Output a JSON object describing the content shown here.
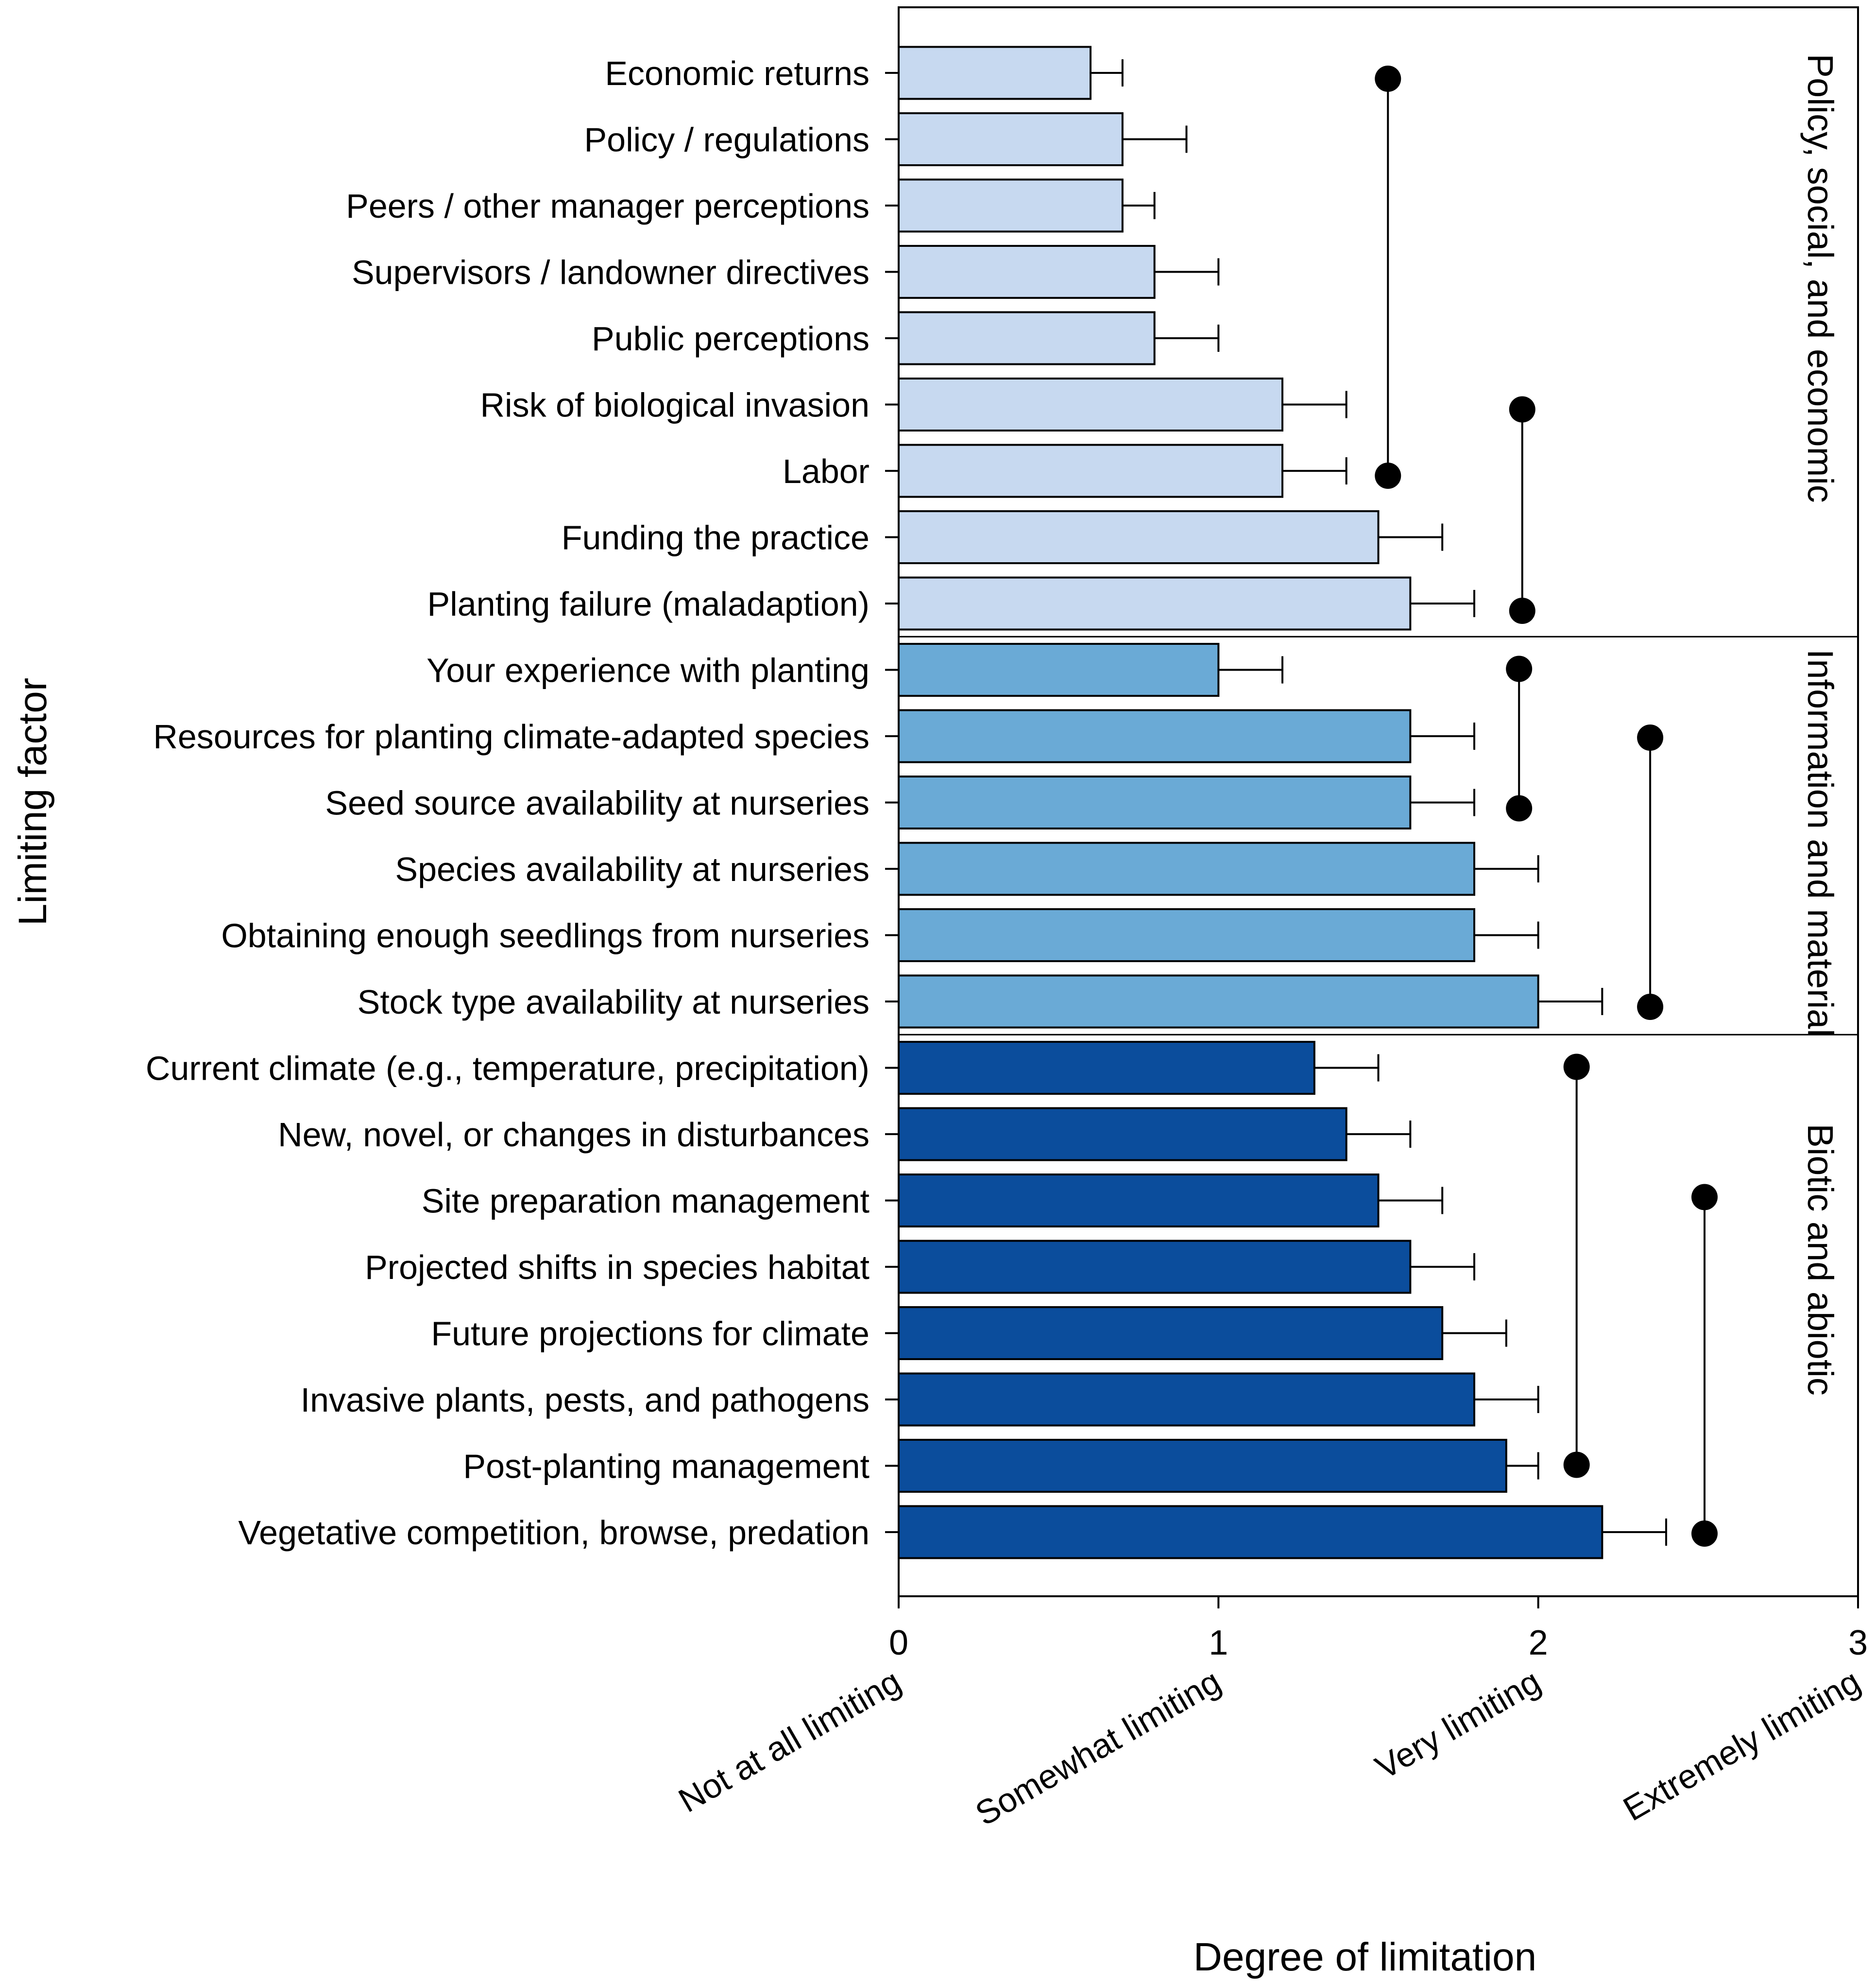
{
  "chart_data": {
    "type": "bar",
    "orientation": "horizontal",
    "title": "",
    "xlabel": "Degree of limitation",
    "ylabel": "Limiting factor",
    "xlim": [
      0,
      3
    ],
    "xticks": [
      0,
      1,
      2,
      3
    ],
    "xtick_descriptions": [
      "Not at all limiting",
      "Somewhat limiting",
      "Very limiting",
      "Extremely limiting"
    ],
    "groups": [
      {
        "name": "Policy, social, and economic",
        "color": "#c7d9f0",
        "categories": [
          "Economic returns",
          "Policy / regulations",
          "Peers / other manager perceptions",
          "Supervisors / landowner directives",
          "Public perceptions",
          "Risk of biological invasion",
          "Labor",
          "Funding the practice",
          "Planting failure (maladaption)"
        ],
        "values": [
          0.6,
          0.7,
          0.7,
          0.8,
          0.8,
          1.2,
          1.2,
          1.5,
          1.6
        ],
        "error_upper": [
          0.7,
          0.9,
          0.8,
          1.0,
          1.0,
          1.4,
          1.4,
          1.7,
          1.8
        ]
      },
      {
        "name": "Information and material",
        "color": "#6aaad6",
        "categories": [
          "Your experience with planting",
          "Resources for planting climate-adapted species",
          "Seed source availability at nurseries",
          "Species availability at nurseries",
          "Obtaining enough seedlings from nurseries",
          "Stock type availability at nurseries"
        ],
        "values": [
          1.0,
          1.6,
          1.6,
          1.8,
          1.8,
          2.0
        ],
        "error_upper": [
          1.2,
          1.8,
          1.8,
          2.0,
          2.0,
          2.2
        ]
      },
      {
        "name": "Biotic and abiotic",
        "color": "#0b4d9c",
        "categories": [
          "Current climate (e.g., temperature, precipitation)",
          "New, novel, or changes in disturbances",
          "Site preparation management",
          "Projected shifts in species habitat",
          "Future projections for climate",
          "Invasive plants, pests, and pathogens",
          "Post-planting management",
          "Vegetative competition, browse, predation"
        ],
        "values": [
          1.3,
          1.4,
          1.5,
          1.6,
          1.7,
          1.8,
          1.9,
          2.2
        ],
        "error_upper": [
          1.5,
          1.6,
          1.7,
          1.8,
          1.9,
          2.0,
          2.0,
          2.4
        ]
      }
    ],
    "significance_brackets": [
      {
        "from": "Economic returns",
        "to": "Labor",
        "x": 1.53
      },
      {
        "from": "Risk of biological invasion",
        "to": "Planting failure (maladaption)",
        "x": 1.95
      },
      {
        "from": "Your experience with planting",
        "to": "Seed source availability at nurseries",
        "x": 1.94
      },
      {
        "from": "Resources for planting climate-adapted species",
        "to": "Stock type availability at nurseries",
        "x": 2.35
      },
      {
        "from": "Current climate (e.g., temperature, precipitation)",
        "to": "Post-planting management",
        "x": 2.12
      },
      {
        "from": "Site preparation management",
        "to": "Vegetative competition, browse, predation",
        "x": 2.52
      }
    ]
  }
}
